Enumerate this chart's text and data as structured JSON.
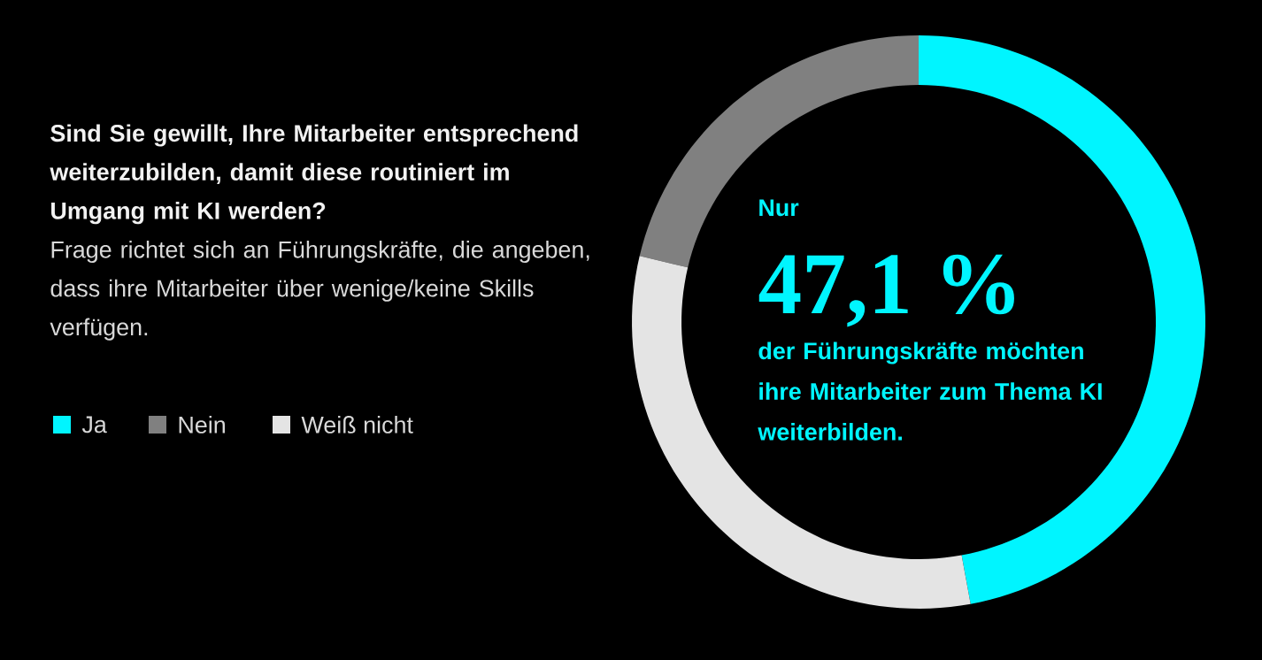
{
  "chart_data": {
    "type": "donut",
    "title": "Sind Sie gewillt, Ihre Mitarbeiter entsprechend weiterzubilden, damit diese routiniert im Umgang mit KI werden?",
    "subtitle": "Frage richtet sich an Führungskräfte, die angeben, dass ihre Mitarbeiter über wenige/keine Skills verfügen.",
    "categories": [
      "Ja",
      "Nein",
      "Weiß nicht"
    ],
    "values": [
      47.1,
      21.3,
      31.6
    ],
    "colors": [
      "#00f5ff",
      "#808080",
      "#e4e4e4"
    ],
    "legend": "left",
    "annotations": [
      "Nur",
      "47,1 %",
      "der Führungskräfte möchten ihre Mitarbeiter zum Thema KI weiterbilden."
    ]
  }
}
